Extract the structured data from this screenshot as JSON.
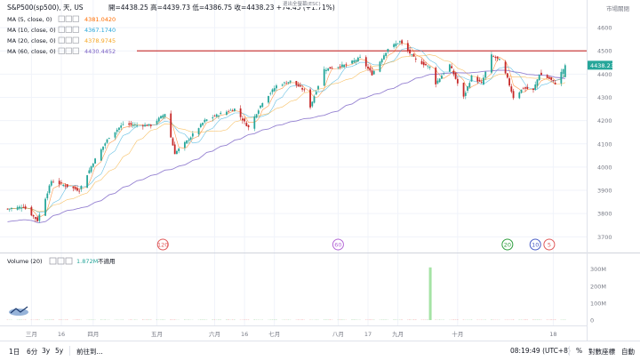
{
  "header": {
    "symbol": "S&P500(sp500), 天, US",
    "ohlc": "開=4438.25  高=4439.73  低=4386.75  收=4438.23  +74.45 (+1.71%)",
    "esc_note": "退出全螢幕(ESC)",
    "top_right": "市場關閉"
  },
  "indicators": [
    {
      "label": "MA (5, close, 0)",
      "value": "4381.0420",
      "color": "#ff6d00"
    },
    {
      "label": "MA (10, close, 0)",
      "value": "4367.1740",
      "color": "#26a6d9"
    },
    {
      "label": "MA (20, close, 0)",
      "value": "4378.9745",
      "color": "#f5a623"
    },
    {
      "label": "MA (60, close, 0)",
      "value": "4430.4452",
      "color": "#7b61c5"
    }
  ],
  "volume_panel": {
    "label": "Volume (20)",
    "value": "1.872M",
    "status": "不適用",
    "value_color": "#26a69a"
  },
  "markers": [
    {
      "text": "120",
      "color": "#e05a5a",
      "x_date": "2021-05-06"
    },
    {
      "text": "60",
      "color": "#b469d6",
      "x_date": "2021-08-02"
    },
    {
      "text": "20",
      "color": "#2e9e3e",
      "x_date": "2021-10-26"
    },
    {
      "text": "10",
      "color": "#4a5ec7",
      "x_date": "2021-11-09"
    },
    {
      "text": "5",
      "color": "#e05a5a",
      "x_date": "2021-11-16"
    }
  ],
  "bottom_bar": {
    "ranges": [
      "1日",
      "6分",
      "3y",
      "5y"
    ],
    "goto": "前往到...",
    "clock": "08:19:49 (UTC+8)",
    "percent": "%",
    "log": "對數座標",
    "auto": "自動"
  },
  "chart_data": {
    "type": "candlestick",
    "title": "S&P500(sp500), 天, US",
    "y_axis_ticks": [
      3700,
      3800,
      3900,
      4000,
      4100,
      4200,
      4300,
      4400,
      4500,
      4600
    ],
    "ylim": [
      3640,
      4650
    ],
    "last_price_label": "4438.23",
    "resistance_line": 4500,
    "x_tick_labels": [
      "三月",
      "16",
      "四月",
      "五月",
      "六月",
      "16",
      "七月",
      "八月",
      "17",
      "九月",
      "十月",
      "18"
    ],
    "volume_axis_ticks": [
      "0",
      "100M",
      "200M",
      "300M"
    ],
    "volume_spike": {
      "date": "2021-09-17",
      "value": "310M"
    },
    "close_series": [
      {
        "date": "2021-02-17",
        "close": 3820
      },
      {
        "date": "2021-02-25",
        "close": 3830
      },
      {
        "date": "2021-03-04",
        "close": 3770
      },
      {
        "date": "2021-03-11",
        "close": 3940
      },
      {
        "date": "2021-03-18",
        "close": 3920
      },
      {
        "date": "2021-03-25",
        "close": 3900
      },
      {
        "date": "2021-04-01",
        "close": 4020
      },
      {
        "date": "2021-04-09",
        "close": 4130
      },
      {
        "date": "2021-04-16",
        "close": 4185
      },
      {
        "date": "2021-04-23",
        "close": 4180
      },
      {
        "date": "2021-04-30",
        "close": 4180
      },
      {
        "date": "2021-05-07",
        "close": 4230
      },
      {
        "date": "2021-05-12",
        "close": 4060
      },
      {
        "date": "2021-05-19",
        "close": 4120
      },
      {
        "date": "2021-05-27",
        "close": 4200
      },
      {
        "date": "2021-06-04",
        "close": 4230
      },
      {
        "date": "2021-06-11",
        "close": 4250
      },
      {
        "date": "2021-06-18",
        "close": 4170
      },
      {
        "date": "2021-06-25",
        "close": 4280
      },
      {
        "date": "2021-07-02",
        "close": 4350
      },
      {
        "date": "2021-07-09",
        "close": 4370
      },
      {
        "date": "2021-07-16",
        "close": 4330
      },
      {
        "date": "2021-07-19",
        "close": 4260
      },
      {
        "date": "2021-07-26",
        "close": 4420
      },
      {
        "date": "2021-08-06",
        "close": 4440
      },
      {
        "date": "2021-08-13",
        "close": 4470
      },
      {
        "date": "2021-08-19",
        "close": 4400
      },
      {
        "date": "2021-08-27",
        "close": 4510
      },
      {
        "date": "2021-09-02",
        "close": 4540
      },
      {
        "date": "2021-09-10",
        "close": 4460
      },
      {
        "date": "2021-09-17",
        "close": 4430
      },
      {
        "date": "2021-09-20",
        "close": 4360
      },
      {
        "date": "2021-09-27",
        "close": 4440
      },
      {
        "date": "2021-10-01",
        "close": 4360
      },
      {
        "date": "2021-10-04",
        "close": 4300
      },
      {
        "date": "2021-10-08",
        "close": 4390
      },
      {
        "date": "2021-10-13",
        "close": 4360
      },
      {
        "date": "2021-10-18",
        "close": 4480
      },
      {
        "date": "2021-10-22",
        "close": 4460
      },
      {
        "date": "2021-10-26",
        "close": 4380
      },
      {
        "date": "2021-10-29",
        "close": 4300
      },
      {
        "date": "2021-11-03",
        "close": 4340
      },
      {
        "date": "2021-11-08",
        "close": 4330
      },
      {
        "date": "2021-11-11",
        "close": 4400
      },
      {
        "date": "2021-11-16",
        "close": 4380
      },
      {
        "date": "2021-11-19",
        "close": 4360
      },
      {
        "date": "2021-11-24",
        "close": 4438
      }
    ]
  }
}
